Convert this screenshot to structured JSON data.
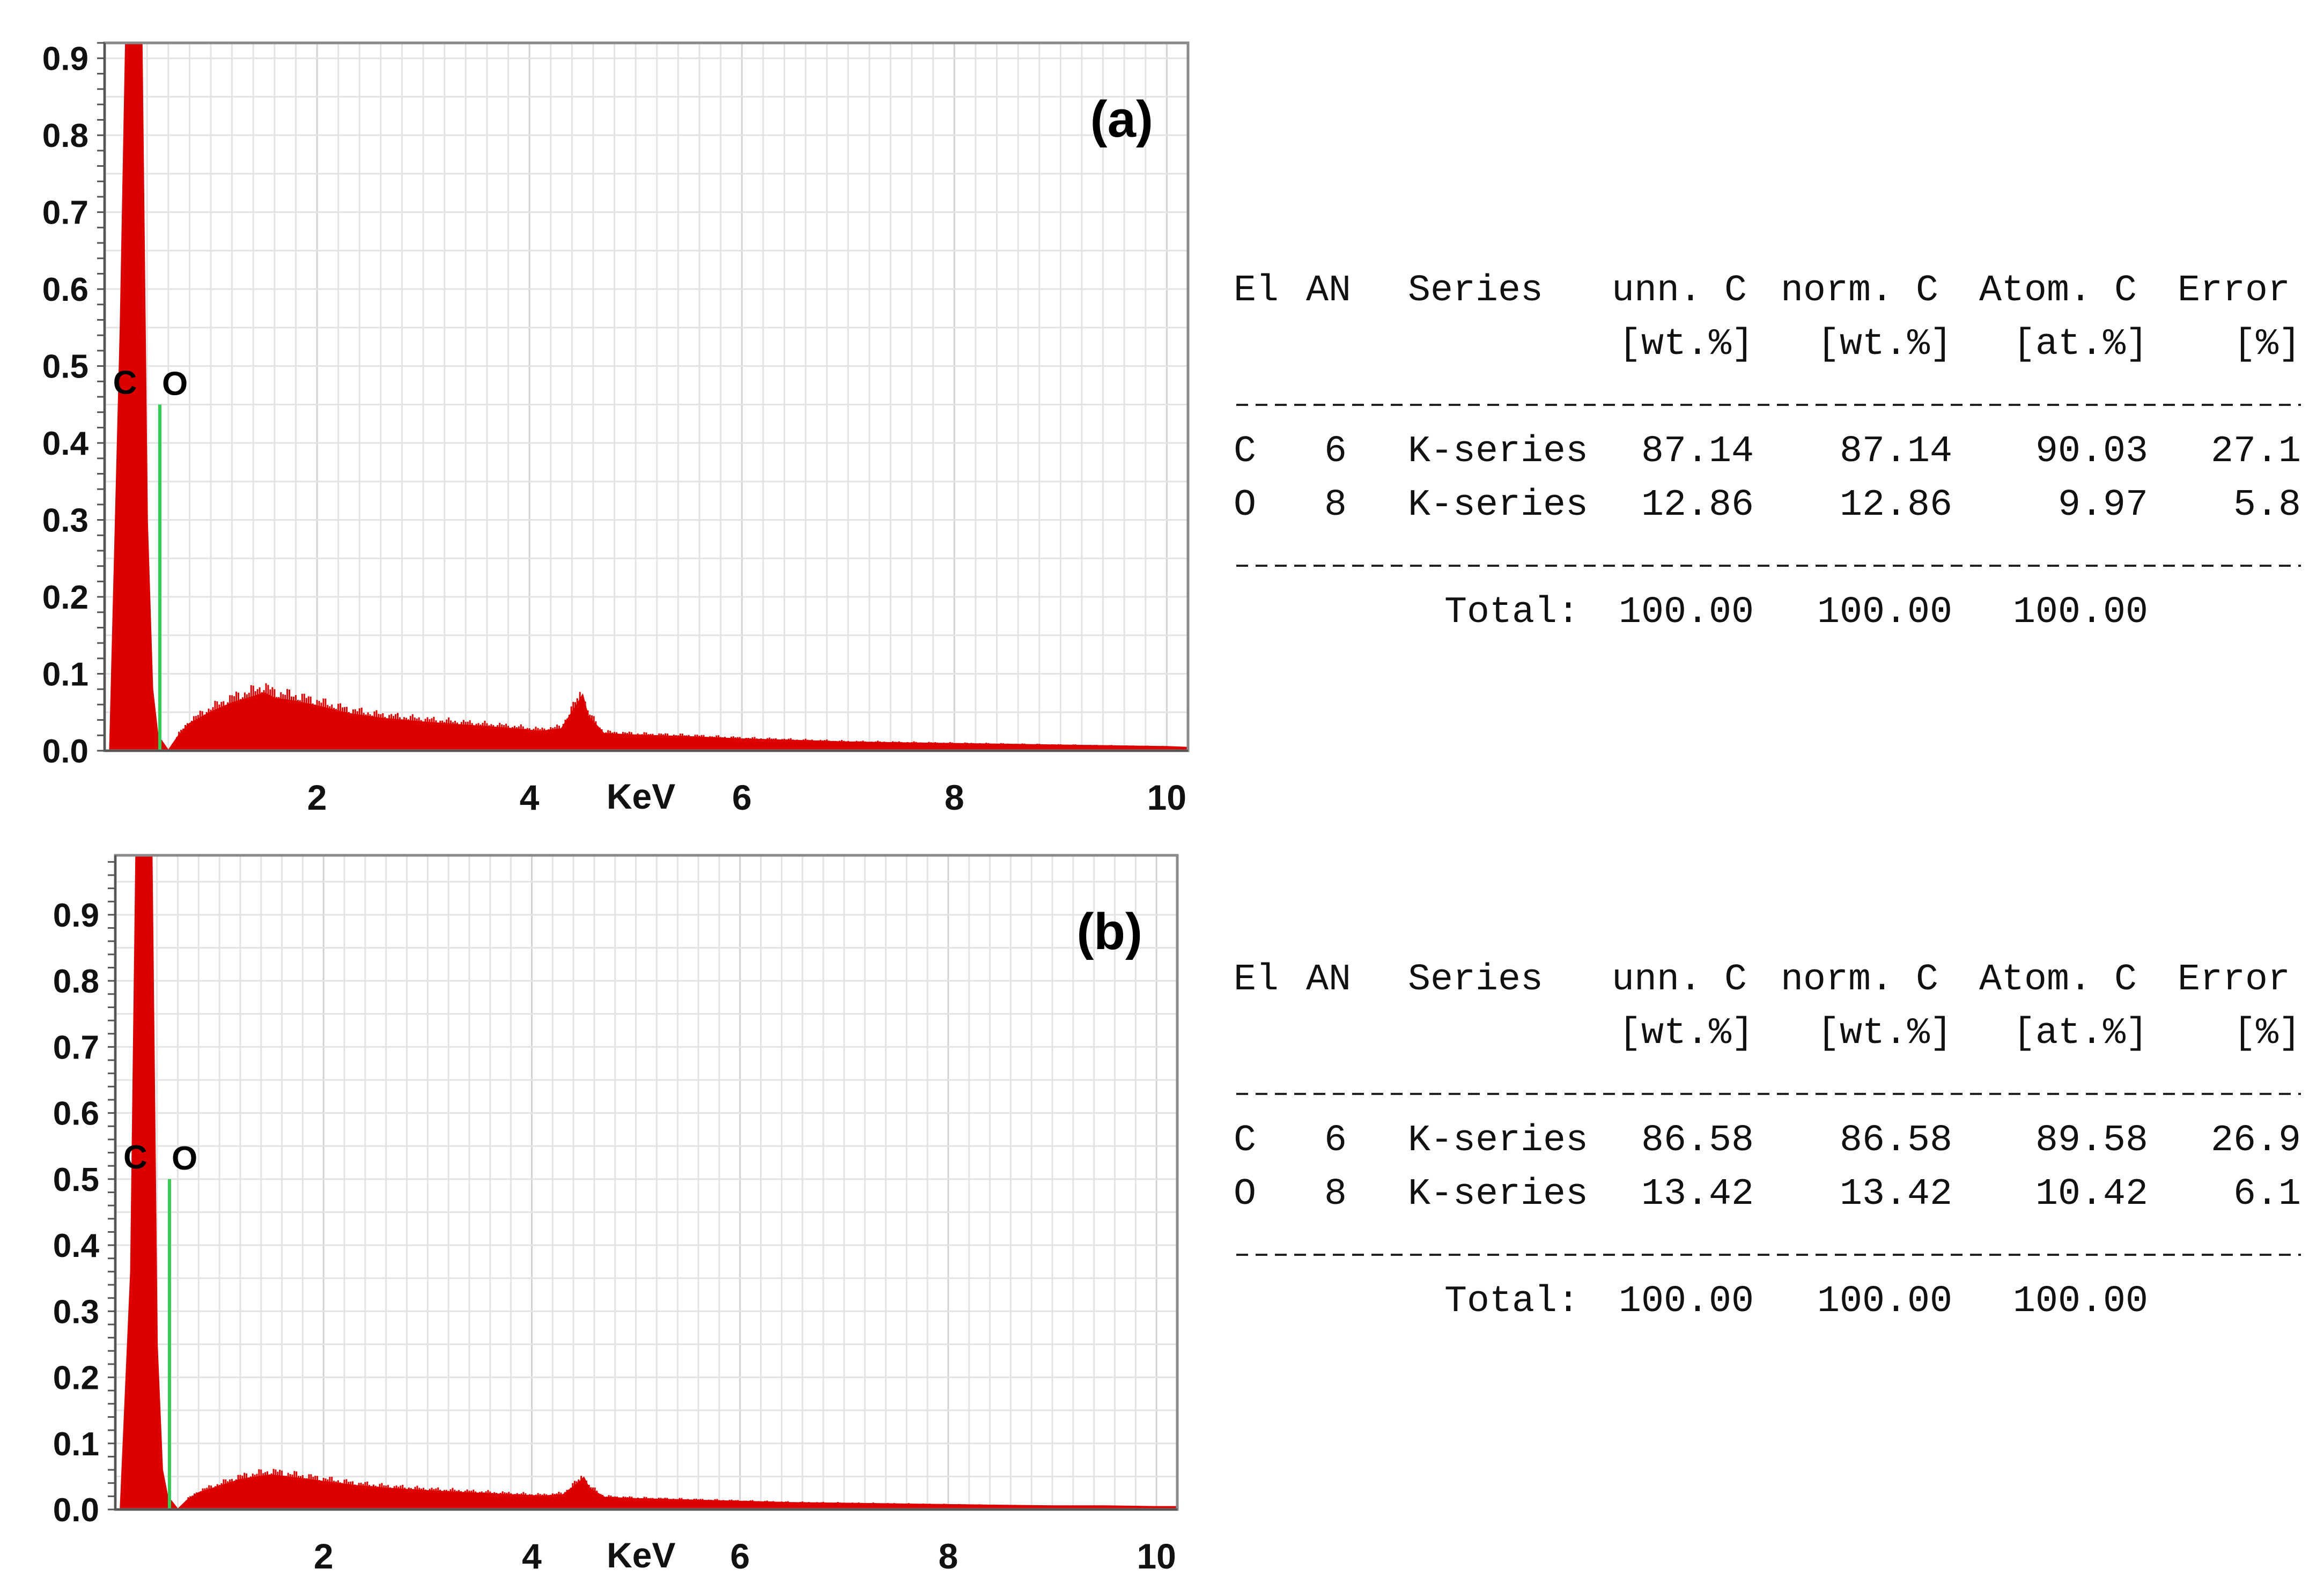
{
  "chart_data": [
    {
      "type": "area",
      "panel_label": "(a)",
      "xlabel": "KeV",
      "x_ticks": [
        2,
        4,
        6,
        8,
        10
      ],
      "y_ticks": [
        0.0,
        0.1,
        0.2,
        0.3,
        0.4,
        0.5,
        0.6,
        0.7,
        0.8,
        0.9
      ],
      "xlim": [
        0,
        10.2
      ],
      "ylim": [
        0,
        0.92
      ],
      "grid": true,
      "series": [
        {
          "color": "#dd0000",
          "x": [
            0.05,
            0.15,
            0.2,
            0.25,
            0.3,
            0.35,
            0.4,
            0.45,
            0.5,
            0.55,
            0.6,
            0.7,
            0.8,
            1.0,
            1.2,
            1.4,
            1.5,
            1.6,
            1.8,
            2.0,
            2.3,
            2.6,
            3.0,
            3.4,
            3.8,
            4.1,
            4.3,
            4.45,
            4.5,
            4.55,
            4.7,
            5.0,
            5.5,
            6.0,
            6.5,
            7.0,
            7.5,
            8.0,
            8.5,
            9.0,
            9.5,
            10.0,
            10.2
          ],
          "y": [
            0.0,
            0.55,
            0.92,
            0.92,
            0.92,
            0.92,
            0.3,
            0.08,
            0.02,
            0.01,
            0.0,
            0.02,
            0.035,
            0.05,
            0.062,
            0.07,
            0.075,
            0.068,
            0.064,
            0.058,
            0.048,
            0.042,
            0.037,
            0.033,
            0.029,
            0.025,
            0.028,
            0.06,
            0.072,
            0.045,
            0.022,
            0.02,
            0.018,
            0.015,
            0.013,
            0.011,
            0.01,
            0.009,
            0.008,
            0.007,
            0.006,
            0.005,
            0.004
          ]
        }
      ],
      "markers": [
        {
          "label": "C",
          "x": 0.18,
          "y": 0.45,
          "color": "#000000"
        },
        {
          "label": "O",
          "x": 0.52,
          "y": 0.45,
          "color": "#33cc55"
        }
      ],
      "table": {
        "header1": [
          "El",
          "AN",
          "Series",
          "unn. C",
          "norm. C",
          "Atom. C",
          "Error"
        ],
        "header2": [
          "",
          "",
          "",
          "[wt.%]",
          "[wt.%]",
          "[at.%]",
          "[%]"
        ],
        "rows": [
          [
            "C",
            "6",
            "K-series",
            "87.14",
            "87.14",
            "90.03",
            "27.1"
          ],
          [
            "O",
            "8",
            "K-series",
            "12.86",
            "12.86",
            "9.97",
            "5.8"
          ]
        ],
        "total_label": "Total:",
        "totals": [
          "100.00",
          "100.00",
          "100.00"
        ]
      }
    },
    {
      "type": "area",
      "panel_label": "(b)",
      "xlabel": "KeV",
      "x_ticks": [
        2,
        4,
        6,
        8,
        10
      ],
      "y_ticks": [
        0.0,
        0.1,
        0.2,
        0.3,
        0.4,
        0.5,
        0.6,
        0.7,
        0.8,
        0.9
      ],
      "xlim": [
        0,
        10.2
      ],
      "ylim": [
        0,
        0.99
      ],
      "grid": true,
      "series": [
        {
          "color": "#dd0000",
          "x": [
            0.05,
            0.15,
            0.2,
            0.25,
            0.3,
            0.35,
            0.4,
            0.45,
            0.5,
            0.55,
            0.6,
            0.7,
            0.8,
            1.0,
            1.2,
            1.4,
            1.5,
            1.6,
            1.8,
            2.0,
            2.3,
            2.6,
            3.0,
            3.4,
            3.8,
            4.1,
            4.3,
            4.45,
            4.5,
            4.55,
            4.7,
            5.0,
            5.5,
            6.0,
            6.5,
            7.0,
            7.5,
            8.0,
            8.5,
            9.0,
            9.5,
            10.0,
            10.2
          ],
          "y": [
            0.0,
            0.36,
            0.99,
            0.99,
            0.99,
            0.99,
            0.25,
            0.06,
            0.02,
            0.01,
            0.0,
            0.015,
            0.025,
            0.035,
            0.045,
            0.05,
            0.052,
            0.05,
            0.046,
            0.042,
            0.036,
            0.032,
            0.028,
            0.025,
            0.022,
            0.02,
            0.022,
            0.04,
            0.048,
            0.032,
            0.018,
            0.016,
            0.014,
            0.012,
            0.01,
            0.009,
            0.008,
            0.007,
            0.006,
            0.005,
            0.005,
            0.004,
            0.004
          ]
        }
      ],
      "markers": [
        {
          "label": "C",
          "x": 0.18,
          "y": 0.5,
          "color": "#000000"
        },
        {
          "label": "O",
          "x": 0.52,
          "y": 0.5,
          "color": "#33cc55"
        }
      ],
      "table": {
        "header1": [
          "El",
          "AN",
          "Series",
          "unn. C",
          "norm. C",
          "Atom. C",
          "Error"
        ],
        "header2": [
          "",
          "",
          "",
          "[wt.%]",
          "[wt.%]",
          "[at.%]",
          "[%]"
        ],
        "rows": [
          [
            "C",
            "6",
            "K-series",
            "86.58",
            "86.58",
            "89.58",
            "26.9"
          ],
          [
            "O",
            "8",
            "K-series",
            "13.42",
            "13.42",
            "10.42",
            "6.1"
          ]
        ],
        "total_label": "Total:",
        "totals": [
          "100.00",
          "100.00",
          "100.00"
        ]
      }
    }
  ]
}
